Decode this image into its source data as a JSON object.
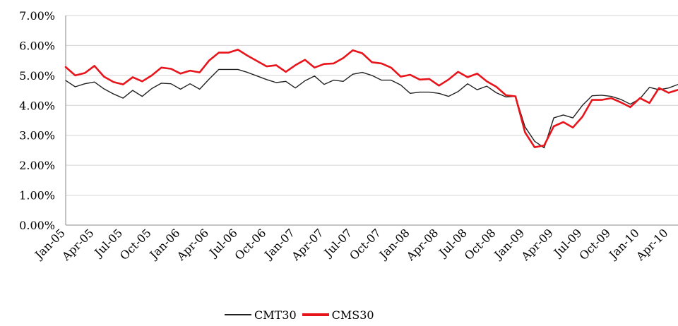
{
  "chart_data": {
    "type": "line",
    "title": "",
    "xlabel": "",
    "ylabel": "",
    "ylim": [
      0,
      7
    ],
    "y_ticks": [
      "0.00%",
      "1.00%",
      "2.00%",
      "3.00%",
      "4.00%",
      "5.00%",
      "6.00%",
      "7.00%"
    ],
    "x_tick_labels": [
      "Jan-05",
      "Apr-05",
      "Jul-05",
      "Oct-05",
      "Jan-06",
      "Apr-06",
      "Jul-06",
      "Oct-06",
      "Jan-07",
      "Apr-07",
      "Jul-07",
      "Oct-07",
      "Jan-08",
      "Apr-08",
      "Jul-08",
      "Oct-08",
      "Jan-09",
      "Apr-09",
      "Jul-09",
      "Oct-09",
      "Jan-10",
      "Apr-10"
    ],
    "grid": true,
    "legend_position": "bottom",
    "x": [
      "Jan-05",
      "Feb-05",
      "Mar-05",
      "Apr-05",
      "May-05",
      "Jun-05",
      "Jul-05",
      "Aug-05",
      "Sep-05",
      "Oct-05",
      "Nov-05",
      "Dec-05",
      "Jan-06",
      "Feb-06",
      "Mar-06",
      "Apr-06",
      "May-06",
      "Jun-06",
      "Jul-06",
      "Aug-06",
      "Sep-06",
      "Oct-06",
      "Nov-06",
      "Dec-06",
      "Jan-07",
      "Feb-07",
      "Mar-07",
      "Apr-07",
      "May-07",
      "Jun-07",
      "Jul-07",
      "Aug-07",
      "Sep-07",
      "Oct-07",
      "Nov-07",
      "Dec-07",
      "Jan-08",
      "Feb-08",
      "Mar-08",
      "Apr-08",
      "May-08",
      "Jun-08",
      "Jul-08",
      "Aug-08",
      "Sep-08",
      "Oct-08",
      "Nov-08",
      "Dec-08",
      "Jan-09",
      "Feb-09",
      "Mar-09",
      "Apr-09",
      "May-09",
      "Jun-09",
      "Jul-09",
      "Aug-09",
      "Sep-09",
      "Oct-09",
      "Nov-09",
      "Dec-09",
      "Jan-10",
      "Feb-10",
      "Mar-10",
      "Apr-10",
      "May-10"
    ],
    "series": [
      {
        "name": "CMT30",
        "color": "#222222",
        "values": [
          4.83,
          4.62,
          4.72,
          4.78,
          4.55,
          4.38,
          4.24,
          4.5,
          4.3,
          4.56,
          4.74,
          4.72,
          4.54,
          4.72,
          4.54,
          4.88,
          5.2,
          5.2,
          5.2,
          5.1,
          4.98,
          4.86,
          4.76,
          4.8,
          4.58,
          4.82,
          4.98,
          4.7,
          4.84,
          4.8,
          5.04,
          5.1,
          5.0,
          4.84,
          4.84,
          4.68,
          4.4,
          4.44,
          4.44,
          4.4,
          4.3,
          4.46,
          4.72,
          4.52,
          4.64,
          4.42,
          4.28,
          4.3,
          3.28,
          2.8,
          2.58,
          3.58,
          3.68,
          3.58,
          4.0,
          4.32,
          4.34,
          4.3,
          4.2,
          4.04,
          4.22,
          4.6,
          4.52,
          4.58,
          4.7
        ]
      },
      {
        "name": "CMS30",
        "color": "#e8141b",
        "values": [
          5.28,
          5.0,
          5.08,
          5.32,
          4.96,
          4.78,
          4.7,
          4.94,
          4.8,
          5.0,
          5.26,
          5.22,
          5.06,
          5.16,
          5.1,
          5.5,
          5.76,
          5.76,
          5.86,
          5.66,
          5.48,
          5.3,
          5.34,
          5.12,
          5.34,
          5.52,
          5.26,
          5.38,
          5.4,
          5.58,
          5.84,
          5.74,
          5.44,
          5.4,
          5.26,
          4.96,
          5.02,
          4.86,
          4.88,
          4.66,
          4.86,
          5.12,
          4.94,
          5.06,
          4.8,
          4.62,
          4.34,
          4.3,
          3.1,
          2.6,
          2.66,
          3.3,
          3.44,
          3.26,
          3.62,
          4.18,
          4.18,
          4.24,
          4.1,
          3.94,
          4.24,
          4.08,
          4.58,
          4.42,
          4.52
        ]
      }
    ]
  }
}
